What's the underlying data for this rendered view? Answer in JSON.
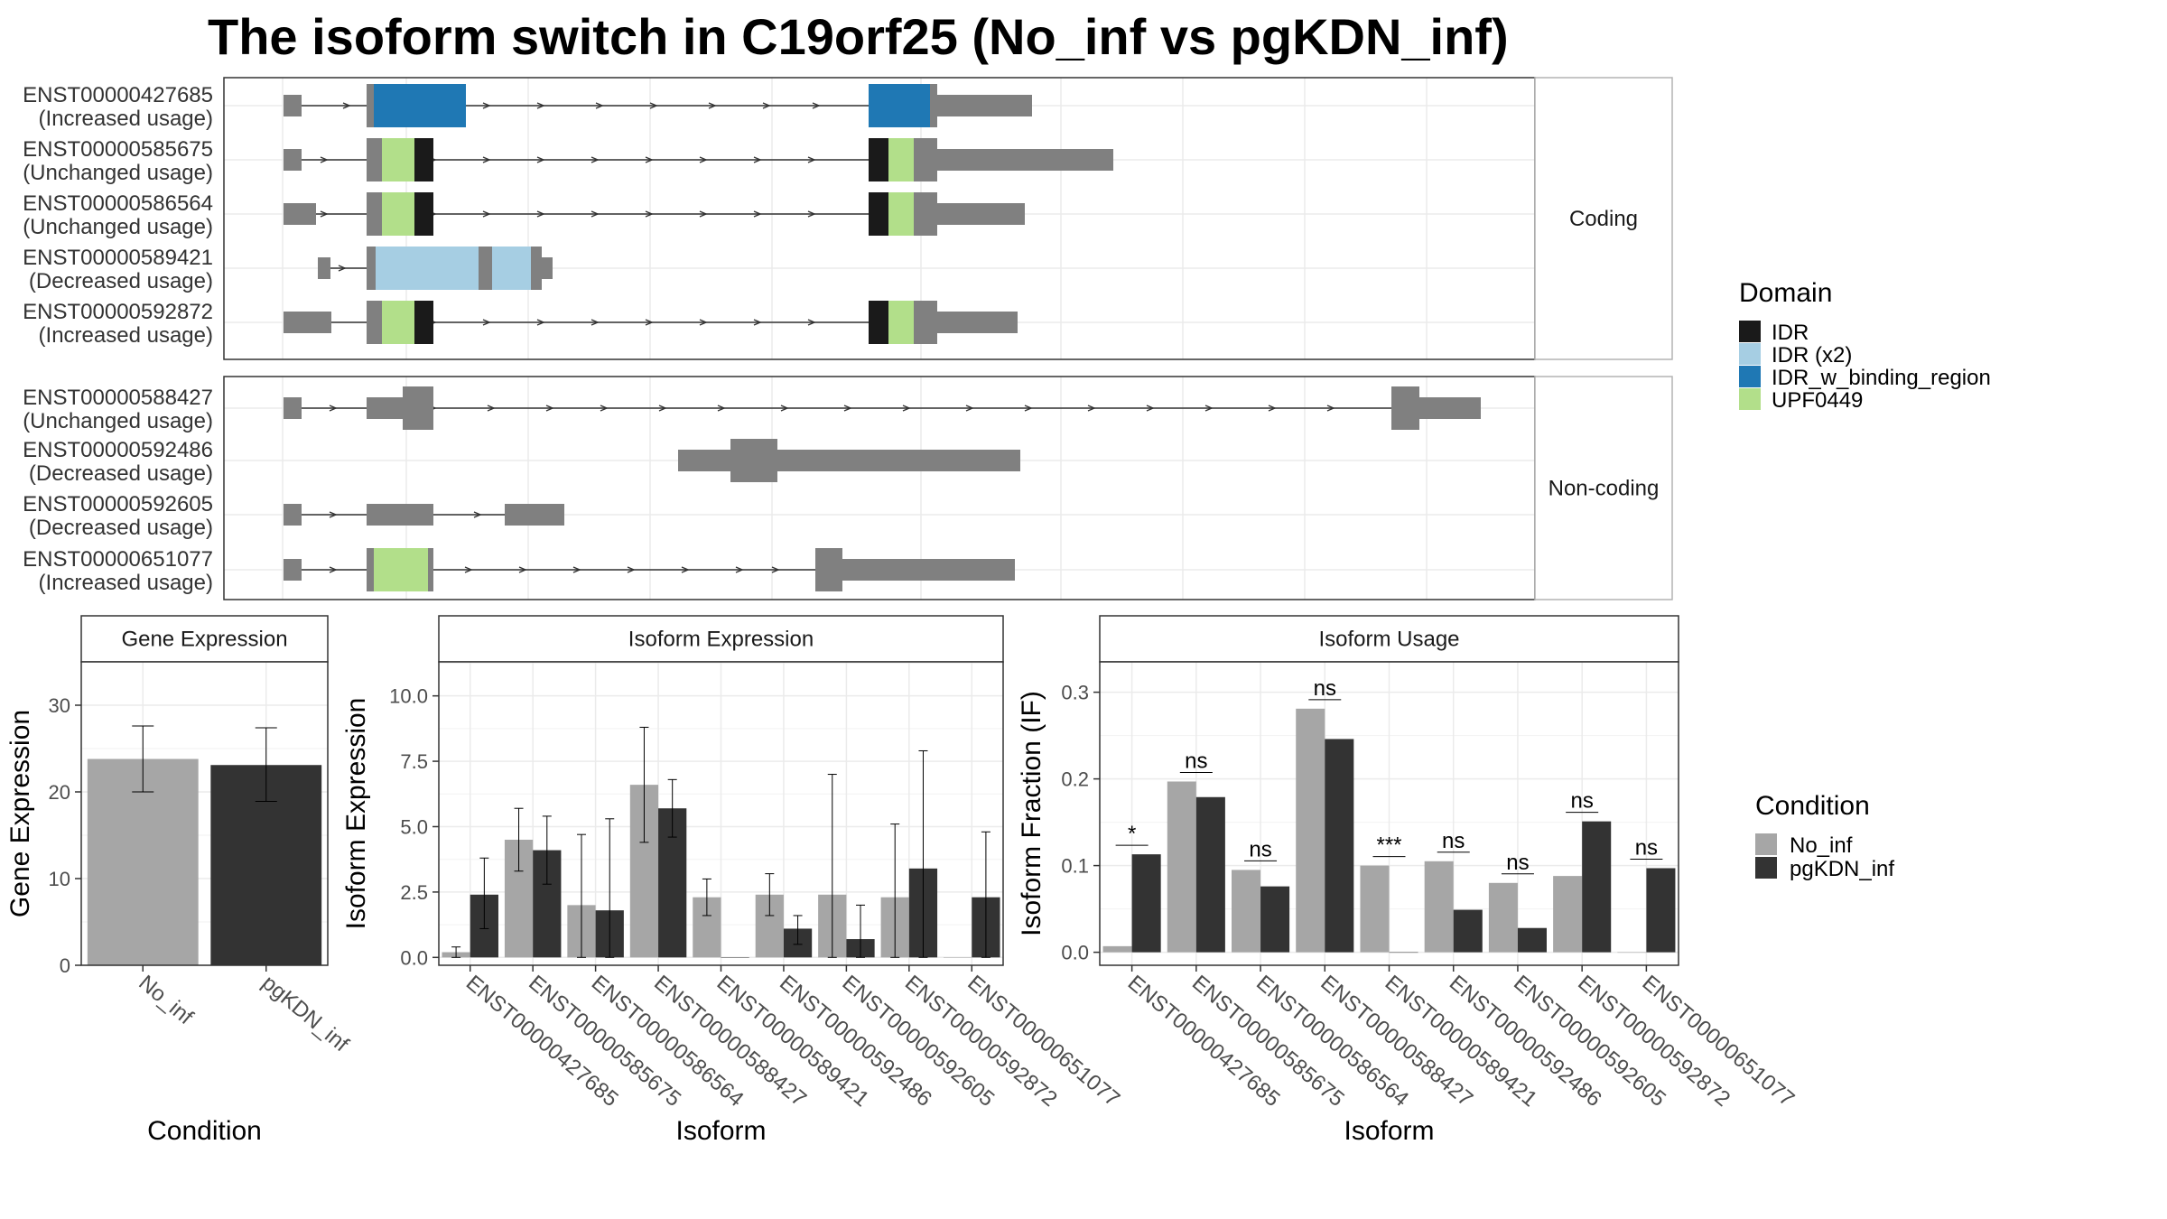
{
  "title": "The isoform switch in C19orf25 (No_inf vs pgKDN_inf)",
  "colors": {
    "exon": "#808080",
    "IDR": "#1a1a1a",
    "IDR (x2)": "#a6cee3",
    "IDR_w_binding_region": "#1f78b4",
    "UPF0449": "#b2df8a",
    "No_inf": "#a6a6a6",
    "pgKDN_inf": "#333333"
  },
  "transcript_panels": [
    {
      "strip": "Coding",
      "rows": [
        {
          "id": "ENST00000427685",
          "status": "(Increased usage)"
        },
        {
          "id": "ENST00000585675",
          "status": "(Unchanged usage)"
        },
        {
          "id": "ENST00000586564",
          "status": "(Unchanged usage)"
        },
        {
          "id": "ENST00000589421",
          "status": "(Decreased usage)"
        },
        {
          "id": "ENST00000592872",
          "status": "(Increased usage)"
        }
      ]
    },
    {
      "strip": "Non-coding",
      "rows": [
        {
          "id": "ENST00000588427",
          "status": "(Unchanged usage)"
        },
        {
          "id": "ENST00000592486",
          "status": "(Decreased usage)"
        },
        {
          "id": "ENST00000592605",
          "status": "(Decreased usage)"
        },
        {
          "id": "ENST00000651077",
          "status": "(Increased usage)"
        }
      ]
    }
  ],
  "domain_legend": {
    "title": "Domain",
    "items": [
      "IDR",
      "IDR (x2)",
      "IDR_w_binding_region",
      "UPF0449"
    ]
  },
  "condition_legend": {
    "title": "Condition",
    "items": [
      "No_inf",
      "pgKDN_inf"
    ]
  },
  "chart_data": [
    {
      "type": "bar",
      "title": "Gene Expression",
      "xlabel": "Condition",
      "ylabel": "Gene Expression",
      "ylim": [
        0,
        35
      ],
      "yticks": [
        0,
        10,
        20,
        30
      ],
      "categories": [
        "No_inf",
        "pgKDN_inf"
      ],
      "values": [
        23.8,
        23.1
      ],
      "errors_low": [
        20.0,
        18.9
      ],
      "errors_high": [
        27.6,
        27.4
      ]
    },
    {
      "type": "bar",
      "title": "Isoform Expression",
      "xlabel": "Isoform",
      "ylabel": "Isoform Expression",
      "ylim": [
        -0.3,
        11.3
      ],
      "yticks": [
        0.0,
        2.5,
        5.0,
        7.5,
        10.0
      ],
      "ytick_labels": [
        "0.0",
        "2.5",
        "5.0",
        "7.5",
        "10.0"
      ],
      "categories": [
        "ENST00000427685",
        "ENST00000585675",
        "ENST00000586564",
        "ENST00000588427",
        "ENST00000589421",
        "ENST00000592486",
        "ENST00000592605",
        "ENST00000592872",
        "ENST00000651077"
      ],
      "series": [
        {
          "name": "No_inf",
          "values": [
            0.2,
            4.5,
            2.0,
            6.6,
            2.3,
            2.4,
            2.4,
            2.3,
            0.0
          ],
          "low": [
            0.0,
            3.3,
            0.0,
            4.4,
            1.6,
            1.6,
            0.0,
            0.0,
            0.0
          ],
          "high": [
            0.4,
            5.7,
            4.7,
            8.8,
            3.0,
            3.2,
            7.0,
            5.1,
            0.0
          ]
        },
        {
          "name": "pgKDN_inf",
          "values": [
            2.4,
            4.1,
            1.8,
            5.7,
            0.0,
            1.1,
            0.7,
            3.4,
            2.3
          ],
          "low": [
            1.1,
            2.8,
            0.0,
            4.6,
            0.0,
            0.5,
            0.0,
            0.0,
            0.0
          ],
          "high": [
            3.8,
            5.4,
            5.3,
            6.8,
            0.0,
            1.6,
            2.0,
            7.9,
            4.8
          ]
        }
      ]
    },
    {
      "type": "bar",
      "title": "Isoform Usage",
      "xlabel": "Isoform",
      "ylabel": "Isoform Fraction (IF)",
      "ylim": [
        -0.015,
        0.335
      ],
      "yticks": [
        0.0,
        0.1,
        0.2,
        0.3
      ],
      "ytick_labels": [
        "0.0",
        "0.1",
        "0.2",
        "0.3"
      ],
      "categories": [
        "ENST00000427685",
        "ENST00000585675",
        "ENST00000586564",
        "ENST00000588427",
        "ENST00000589421",
        "ENST00000592486",
        "ENST00000592605",
        "ENST00000592872",
        "ENST00000651077"
      ],
      "series": [
        {
          "name": "No_inf",
          "values": [
            0.007,
            0.197,
            0.095,
            0.281,
            0.1,
            0.105,
            0.08,
            0.088,
            0.0
          ]
        },
        {
          "name": "pgKDN_inf",
          "values": [
            0.113,
            0.179,
            0.076,
            0.246,
            0.0,
            0.049,
            0.028,
            0.151,
            0.097
          ]
        }
      ],
      "significance": [
        "*",
        "ns",
        "ns",
        "ns",
        "***",
        "ns",
        "ns",
        "ns",
        "ns"
      ]
    }
  ]
}
